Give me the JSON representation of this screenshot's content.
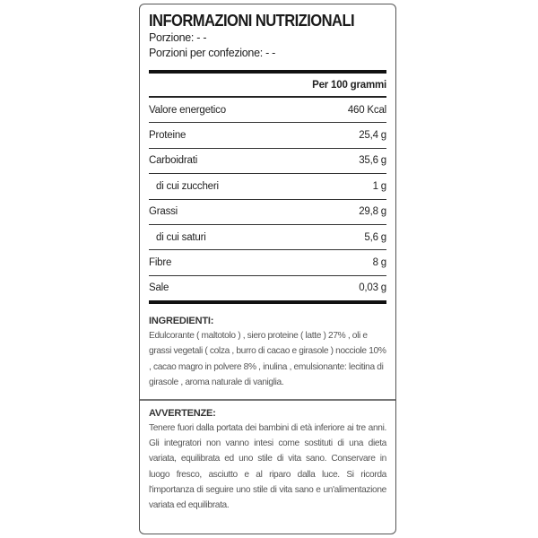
{
  "header": {
    "title": "INFORMAZIONI NUTRIZIONALI",
    "serving": "Porzione: - -",
    "servings_per_pack": "Porzioni per confezione: - -"
  },
  "table": {
    "column_header": "Per 100 grammi",
    "rows": [
      {
        "name": "Valore energetico",
        "value": "460 Kcal"
      },
      {
        "name": "Proteine",
        "value": "25,4 g"
      },
      {
        "name": "Carboidrati",
        "value": "35,6 g"
      },
      {
        "name": "di cui zuccheri",
        "value": "1 g"
      },
      {
        "name": "Grassi",
        "value": "29,8 g"
      },
      {
        "name": "di cui saturi",
        "value": "5,6 g"
      },
      {
        "name": "Fibre",
        "value": "8 g"
      },
      {
        "name": "Sale",
        "value": "0,03 g"
      }
    ]
  },
  "ingredients": {
    "title": "INGREDIENTI:",
    "text": "Edulcorante ( maltotolo ) , siero proteine ( latte ) 27% , oli e grassi vegetali ( colza , burro di cacao e girasole ) nocciole 10% , cacao magro in polvere 8% , inulina , emulsionante: lecitina di girasole , aroma naturale di vaniglia."
  },
  "warnings": {
    "title": "AVVERTENZE:",
    "text": "Tenere fuori dalla portata dei bambini di età inferiore ai tre anni. Gli integratori non vanno intesi come sostituti di una dieta variata, equilibrata ed uno stile di vita sano. Conservare in luogo fresco, asciutto e al riparo dalla luce. Si ricorda l'importanza di seguire uno stile di vita sano e un'alimentazione variata ed equilibrata."
  }
}
